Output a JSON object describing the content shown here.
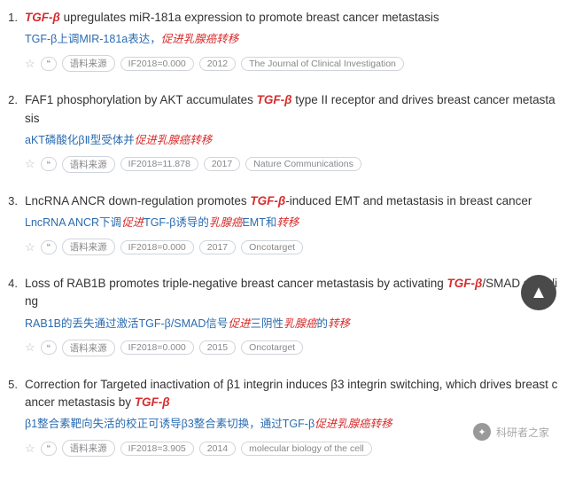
{
  "items": [
    {
      "num": "1.",
      "title_parts": [
        {
          "t": "TGF-β",
          "hl": true
        },
        {
          "t": " upregulates miR-181a expression to promote breast cancer metastasis",
          "hl": false
        }
      ],
      "cn_parts": [
        {
          "t": "TGF-β上调MIR-181a表达，",
          "hl": false
        },
        {
          "t": "促进乳腺癌转移",
          "hl": true
        }
      ],
      "tags": {
        "source": "语料来源",
        "if": "IF2018=0.000",
        "year": "2012",
        "journal": "The Journal of Clinical Investigation"
      }
    },
    {
      "num": "2.",
      "title_parts": [
        {
          "t": "FAF1 phosphorylation by AKT accumulates ",
          "hl": false
        },
        {
          "t": "TGF-β",
          "hl": true
        },
        {
          "t": " type II receptor and drives breast cancer metastasis",
          "hl": false
        }
      ],
      "cn_parts": [
        {
          "t": "aKT磷酸化βⅡ型受体并",
          "hl": false
        },
        {
          "t": "促进乳腺癌转移",
          "hl": true
        }
      ],
      "tags": {
        "source": "语料来源",
        "if": "IF2018=11.878",
        "year": "2017",
        "journal": "Nature Communications"
      }
    },
    {
      "num": "3.",
      "title_parts": [
        {
          "t": "LncRNA ANCR down-regulation promotes ",
          "hl": false
        },
        {
          "t": "TGF-β",
          "hl": true
        },
        {
          "t": "-induced EMT and metastasis in breast cancer",
          "hl": false
        }
      ],
      "cn_parts": [
        {
          "t": "LncRNA ANCR下调",
          "hl": false
        },
        {
          "t": "促进",
          "hl": true
        },
        {
          "t": "TGF-β诱导的",
          "hl": false
        },
        {
          "t": "乳腺癌",
          "hl": true
        },
        {
          "t": "EMT和",
          "hl": false
        },
        {
          "t": "转移",
          "hl": true
        }
      ],
      "tags": {
        "source": "语料来源",
        "if": "IF2018=0.000",
        "year": "2017",
        "journal": "Oncotarget"
      }
    },
    {
      "num": "4.",
      "title_parts": [
        {
          "t": "Loss of RAB1B promotes triple-negative breast cancer metastasis by activating ",
          "hl": false
        },
        {
          "t": "TGF-β",
          "hl": true
        },
        {
          "t": "/SMAD signaling",
          "hl": false
        }
      ],
      "cn_parts": [
        {
          "t": "RAB1B的丢失通过激活TGF-β/SMAD信号",
          "hl": false
        },
        {
          "t": "促进",
          "hl": true
        },
        {
          "t": "三阴性",
          "hl": false
        },
        {
          "t": "乳腺癌",
          "hl": true
        },
        {
          "t": "的",
          "hl": false
        },
        {
          "t": "转移",
          "hl": true
        }
      ],
      "tags": {
        "source": "语料来源",
        "if": "IF2018=0.000",
        "year": "2015",
        "journal": "Oncotarget"
      }
    },
    {
      "num": "5.",
      "title_parts": [
        {
          "t": "Correction for Targeted inactivation of β1 integrin induces β3 integrin switching, which drives breast cancer metastasis by ",
          "hl": false
        },
        {
          "t": "TGF-β",
          "hl": true
        }
      ],
      "cn_parts": [
        {
          "t": "β1整合素靶向失活的校正可诱导β3整合素切换，通过TGF-β",
          "hl": false
        },
        {
          "t": "促进乳腺癌转移",
          "hl": true
        }
      ],
      "tags": {
        "source": "语料来源",
        "if": "IF2018=3.905",
        "year": "2014",
        "journal": "molecular biology of the cell"
      }
    }
  ],
  "watermark": "科研者之家",
  "icons": {
    "quote": "❝",
    "star": "☆",
    "up": "▲"
  }
}
